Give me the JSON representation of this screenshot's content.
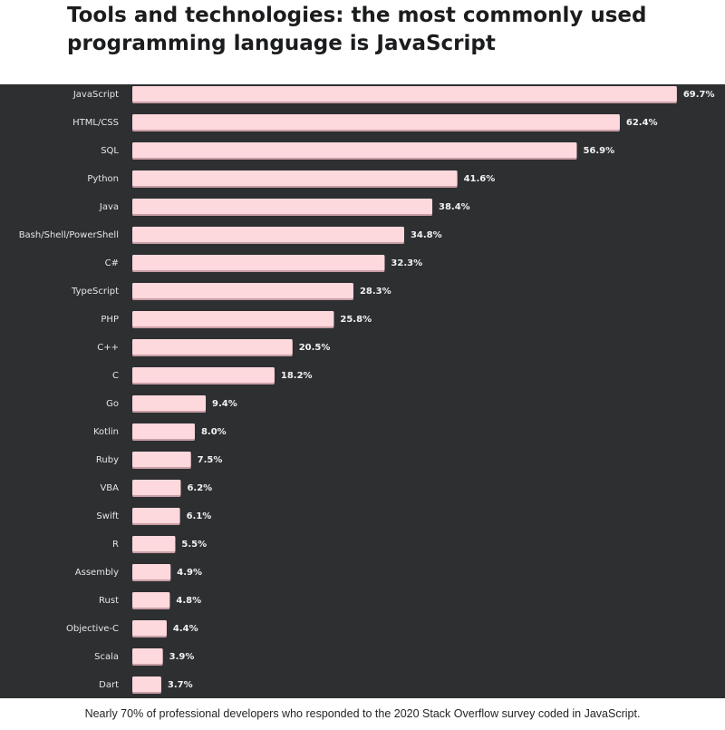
{
  "header": {
    "title_line1": "Tools and technologies: the most commonly used",
    "title_line2": "programming language is JavaScript"
  },
  "caption": "Nearly 70% of professional developers who responded to the 2020 Stack Overflow survey coded in JavaScript.",
  "colors": {
    "background": "#2d2f31",
    "bar": "#fdd8dc",
    "text": "#e4e6e8"
  },
  "chart_data": {
    "type": "bar",
    "orientation": "horizontal",
    "title": "",
    "xlabel": "",
    "ylabel": "",
    "xlim": [
      0,
      70
    ],
    "grid": false,
    "legend": "none",
    "categories": [
      "JavaScript",
      "HTML/CSS",
      "SQL",
      "Python",
      "Java",
      "Bash/Shell/PowerShell",
      "C#",
      "TypeScript",
      "PHP",
      "C++",
      "C",
      "Go",
      "Kotlin",
      "Ruby",
      "VBA",
      "Swift",
      "R",
      "Assembly",
      "Rust",
      "Objective-C",
      "Scala",
      "Dart"
    ],
    "values": [
      69.7,
      62.4,
      56.9,
      41.6,
      38.4,
      34.8,
      32.3,
      28.3,
      25.8,
      20.5,
      18.2,
      9.4,
      8.0,
      7.5,
      6.2,
      6.1,
      5.5,
      4.9,
      4.8,
      4.4,
      3.9,
      3.7
    ],
    "value_labels": [
      "69.7%",
      "62.4%",
      "56.9%",
      "41.6%",
      "38.4%",
      "34.8%",
      "32.3%",
      "28.3%",
      "25.8%",
      "20.5%",
      "18.2%",
      "9.4%",
      "8.0%",
      "7.5%",
      "6.2%",
      "6.1%",
      "5.5%",
      "4.9%",
      "4.8%",
      "4.4%",
      "3.9%",
      "3.7%"
    ]
  }
}
